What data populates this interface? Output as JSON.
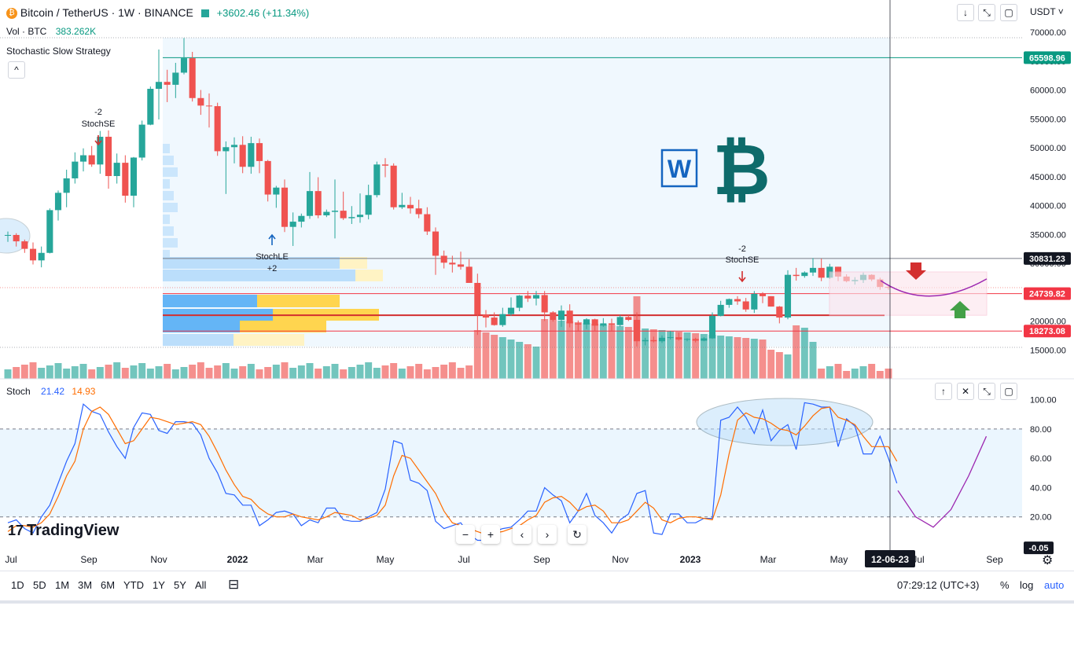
{
  "header": {
    "symbol": "Bitcoin / TetherUS · 1W · BINANCE",
    "change": "+3602.46 (+11.34%)",
    "vol_label": "Vol · BTC",
    "vol_value": "383.262K",
    "strategy": "Stochastic Slow Strategy",
    "currency": "USDT",
    "collapse_symbol": "^"
  },
  "stoch": {
    "label": "Stoch",
    "k": "21.42",
    "d": "14.93"
  },
  "branding": {
    "name": "TradingView",
    "logo_text": "17"
  },
  "annotations": {
    "stochse_1_count": "-2",
    "stochse_1": "StochSE",
    "stochle_1": "StochLE",
    "stochle_1_count": "+2",
    "stochse_2_count": "-2",
    "stochse_2": "StochSE"
  },
  "price_labels": {
    "high": "65598.96",
    "line_1": "30831.23",
    "current": "24739.82",
    "line_2": "18273.08",
    "stoch_value": "-0.05",
    "date_cursor": "12-06-23"
  },
  "timeframes": [
    "1D",
    "5D",
    "1M",
    "3M",
    "6M",
    "YTD",
    "1Y",
    "5Y",
    "All"
  ],
  "bottom_right": {
    "time": "07:29:12 (UTC+3)",
    "pct": "%",
    "log": "log",
    "auto": "auto"
  },
  "colors": {
    "up": "#26a69a",
    "down": "#ef5350",
    "stoch_k": "#2962ff",
    "stoch_d": "#ff6d00",
    "accent": "#2962ff"
  },
  "icons": [
    "arrow-down-icon",
    "expand-icon",
    "maximize-icon",
    "arrow-up-icon",
    "close-icon",
    "zoom-out-icon",
    "zoom-in-icon",
    "scroll-left-icon",
    "scroll-right-icon",
    "reset-icon",
    "settings-icon",
    "calendar-range-icon",
    "bitcoin-icon",
    "w-logo-icon"
  ],
  "chart_data": [
    {
      "type": "candlestick",
      "title": "Bitcoin / TetherUS · 1W · BINANCE",
      "x_ticks": [
        "Jul",
        "Sep",
        "Nov",
        "2022",
        "Mar",
        "May",
        "Jul",
        "Sep",
        "Nov",
        "2023",
        "Mar",
        "May",
        "12-06-23",
        "Jul",
        "Sep"
      ],
      "y_ticks": [
        15000,
        20000,
        25000,
        30000,
        35000,
        40000,
        45000,
        50000,
        55000,
        60000,
        65000,
        70000
      ],
      "ylim": [
        10000,
        70000
      ],
      "horizontal_lines": [
        65598.96,
        30831.23,
        24739.82,
        21000,
        18273.08
      ],
      "candles": [
        [
          34800,
          35500,
          33700,
          34900
        ],
        [
          34900,
          35200,
          32900,
          33800
        ],
        [
          33800,
          34100,
          31800,
          32500
        ],
        [
          32500,
          33600,
          29800,
          30500
        ],
        [
          30500,
          32900,
          29300,
          31800
        ],
        [
          31800,
          39500,
          31700,
          39200
        ],
        [
          39200,
          42600,
          37400,
          42200
        ],
        [
          42200,
          46200,
          39700,
          44700
        ],
        [
          44700,
          49200,
          43800,
          47600
        ],
        [
          47600,
          49900,
          45900,
          48700
        ],
        [
          48700,
          50300,
          46700,
          47100
        ],
        [
          47100,
          52900,
          45500,
          51900
        ],
        [
          51900,
          53000,
          42900,
          45100
        ],
        [
          45100,
          49000,
          43800,
          47400
        ],
        [
          47400,
          48700,
          40500,
          41700
        ],
        [
          41700,
          48400,
          39700,
          48300
        ],
        [
          48300,
          54700,
          47800,
          54000
        ],
        [
          54000,
          60600,
          53900,
          60200
        ],
        [
          60200,
          67000,
          54900,
          61400
        ],
        [
          61400,
          63500,
          57900,
          60900
        ],
        [
          60900,
          64700,
          58600,
          63000
        ],
        [
          63000,
          69000,
          62700,
          65500
        ],
        [
          65500,
          66600,
          58000,
          58600
        ],
        [
          58600,
          60000,
          55700,
          57300
        ],
        [
          57300,
          59400,
          53500,
          57200
        ],
        [
          57200,
          57800,
          48600,
          49400
        ],
        [
          49400,
          51100,
          42000,
          50100
        ],
        [
          50100,
          51800,
          47300,
          50500
        ],
        [
          50500,
          52000,
          45600,
          46700
        ],
        [
          46700,
          51900,
          45500,
          50800
        ],
        [
          50800,
          51600,
          45600,
          47700
        ],
        [
          47700,
          47900,
          40700,
          41900
        ],
        [
          41900,
          43400,
          39600,
          43100
        ],
        [
          43100,
          44500,
          35400,
          36300
        ],
        [
          36300,
          38800,
          33000,
          37200
        ],
        [
          37200,
          38600,
          36200,
          38200
        ],
        [
          38200,
          45800,
          37700,
          42500
        ],
        [
          42500,
          44900,
          37800,
          38300
        ],
        [
          38300,
          39300,
          38000,
          38900
        ],
        [
          38900,
          44500,
          34300,
          39100
        ],
        [
          39100,
          42400,
          37500,
          37800
        ],
        [
          37800,
          39900,
          36800,
          38000
        ],
        [
          38000,
          42100,
          37000,
          38400
        ],
        [
          38400,
          43600,
          37600,
          41800
        ],
        [
          41800,
          47600,
          41400,
          47100
        ],
        [
          47100,
          48200,
          44900,
          46900
        ],
        [
          46900,
          47300,
          39300,
          39700
        ],
        [
          39700,
          42200,
          39400,
          40100
        ],
        [
          40100,
          41500,
          38600,
          39500
        ],
        [
          39500,
          41000,
          37800,
          38500
        ],
        [
          38500,
          39700,
          34900,
          35500
        ],
        [
          35500,
          36200,
          28000,
          31300
        ],
        [
          31300,
          32200,
          29100,
          30100
        ],
        [
          30100,
          31300,
          28400,
          29800
        ],
        [
          29800,
          32000,
          28900,
          29400
        ],
        [
          29400,
          30700,
          26600,
          26600
        ],
        [
          26600,
          28200,
          17600,
          21100
        ],
        [
          21100,
          21900,
          18900,
          20600
        ],
        [
          20600,
          21500,
          19200,
          19300
        ],
        [
          19300,
          22300,
          19000,
          21200
        ],
        [
          21200,
          24100,
          20900,
          22300
        ],
        [
          22300,
          24500,
          21700,
          24400
        ],
        [
          24400,
          25200,
          23300,
          23900
        ],
        [
          23900,
          25200,
          22700,
          24500
        ],
        [
          24500,
          25200,
          20000,
          21500
        ],
        [
          21500,
          21700,
          19900,
          20200
        ],
        [
          20200,
          22700,
          19000,
          21800
        ],
        [
          21800,
          22900,
          18900,
          19600
        ],
        [
          19600,
          20100,
          18300,
          19400
        ],
        [
          19400,
          20500,
          18600,
          20300
        ],
        [
          20300,
          20400,
          18200,
          19200
        ],
        [
          19200,
          20500,
          19000,
          19600
        ],
        [
          19600,
          20400,
          18300,
          19300
        ],
        [
          19300,
          21000,
          19000,
          20700
        ],
        [
          20700,
          21000,
          20000,
          20200
        ],
        [
          20200,
          21500,
          15600,
          16500
        ],
        [
          16500,
          17100,
          15800,
          16700
        ],
        [
          16700,
          17300,
          16300,
          16500
        ],
        [
          16500,
          17500,
          16200,
          17100
        ],
        [
          17100,
          18300,
          16800,
          17200
        ],
        [
          17200,
          18000,
          16600,
          16800
        ],
        [
          16800,
          17000,
          16500,
          16900
        ],
        [
          16900,
          17100,
          16300,
          16600
        ],
        [
          16600,
          17200,
          16500,
          17000
        ],
        [
          17000,
          21500,
          16900,
          20900
        ],
        [
          20900,
          23500,
          20800,
          22800
        ],
        [
          22800,
          23900,
          22300,
          23800
        ],
        [
          23800,
          24300,
          22800,
          23400
        ],
        [
          23400,
          24000,
          21600,
          22000
        ],
        [
          22000,
          25200,
          21400,
          24700
        ],
        [
          24700,
          25000,
          23100,
          24300
        ],
        [
          24300,
          24300,
          22500,
          22500
        ],
        [
          22500,
          22600,
          19600,
          20600
        ],
        [
          20600,
          28800,
          20300,
          28000
        ],
        [
          28000,
          29200,
          27000,
          27800
        ],
        [
          27800,
          28600,
          27500,
          28400
        ],
        [
          28400,
          30900,
          27800,
          29200
        ],
        [
          29200,
          30800,
          26900,
          27500
        ],
        [
          27500,
          29900,
          27300,
          29400
        ],
        [
          29400,
          29400,
          26900,
          27700
        ],
        [
          27700,
          28100,
          26700,
          26900
        ],
        [
          26900,
          27600,
          26300,
          27100
        ],
        [
          27100,
          28400,
          26600,
          28000
        ],
        [
          28000,
          28100,
          26900,
          27200
        ],
        [
          27200,
          27500,
          25400,
          25900
        ],
        [
          25900,
          26200,
          25400,
          25800
        ]
      ],
      "volume_trend": "highest in Jul 2022 – Mar 2023, low elsewhere",
      "volume_profile": "horizontal histogram at left of mid-2021 region, peak near 21000",
      "forecast": "purple U-shaped curve from ~27000 dipping to ~23200 and rising to ~27200; red down arrow near 30000, green up arrow near 22000 within pink box 21000–28500"
    },
    {
      "type": "line",
      "title": "Stoch",
      "y_ticks": [
        20,
        40,
        60,
        80,
        100
      ],
      "ylim": [
        0,
        110
      ],
      "bands": [
        20,
        80
      ],
      "series": [
        {
          "name": "21.42",
          "color": "#2962ff",
          "values": [
            16,
            18,
            12,
            9,
            20,
            28,
            43,
            58,
            70,
            97,
            92,
            90,
            78,
            68,
            60,
            81,
            91,
            90,
            79,
            77,
            85,
            85,
            84,
            76,
            60,
            50,
            36,
            35,
            28,
            28,
            14,
            18,
            23,
            24,
            22,
            14,
            18,
            16,
            26,
            26,
            18,
            17,
            17,
            20,
            23,
            39,
            72,
            70,
            45,
            43,
            38,
            17,
            12,
            14,
            16,
            8,
            4,
            4,
            10,
            12,
            13,
            18,
            24,
            24,
            40,
            35,
            31,
            16,
            24,
            36,
            21,
            16,
            9,
            18,
            22,
            36,
            38,
            9,
            8,
            22,
            22,
            16,
            16,
            19,
            19,
            86,
            88,
            95,
            88,
            77,
            93,
            72,
            79,
            83,
            66,
            98,
            97,
            95,
            95,
            68,
            87,
            82,
            63,
            63,
            75,
            60,
            43
          ]
        },
        {
          "name": "14.93",
          "color": "#ff6d00",
          "values": [
            10,
            14,
            14,
            13,
            16,
            22,
            34,
            48,
            58,
            80,
            92,
            95,
            90,
            80,
            70,
            72,
            80,
            88,
            87,
            85,
            83,
            84,
            85,
            83,
            75,
            64,
            52,
            42,
            34,
            32,
            26,
            22,
            20,
            20,
            22,
            20,
            19,
            18,
            20,
            23,
            22,
            21,
            18,
            19,
            21,
            28,
            48,
            62,
            60,
            52,
            44,
            36,
            24,
            16,
            14,
            12,
            10,
            8,
            9,
            10,
            12,
            14,
            18,
            21,
            30,
            33,
            34,
            30,
            24,
            27,
            28,
            24,
            16,
            16,
            18,
            24,
            30,
            26,
            18,
            16,
            19,
            20,
            20,
            19,
            18,
            35,
            63,
            86,
            91,
            88,
            87,
            84,
            80,
            79,
            76,
            82,
            89,
            94,
            95,
            88,
            86,
            83,
            75,
            68,
            68,
            68,
            58
          ]
        },
        {
          "name": "forecast",
          "color": "#9c27b0",
          "values": [
            38,
            20,
            13,
            25,
            48,
            75
          ]
        }
      ]
    }
  ]
}
